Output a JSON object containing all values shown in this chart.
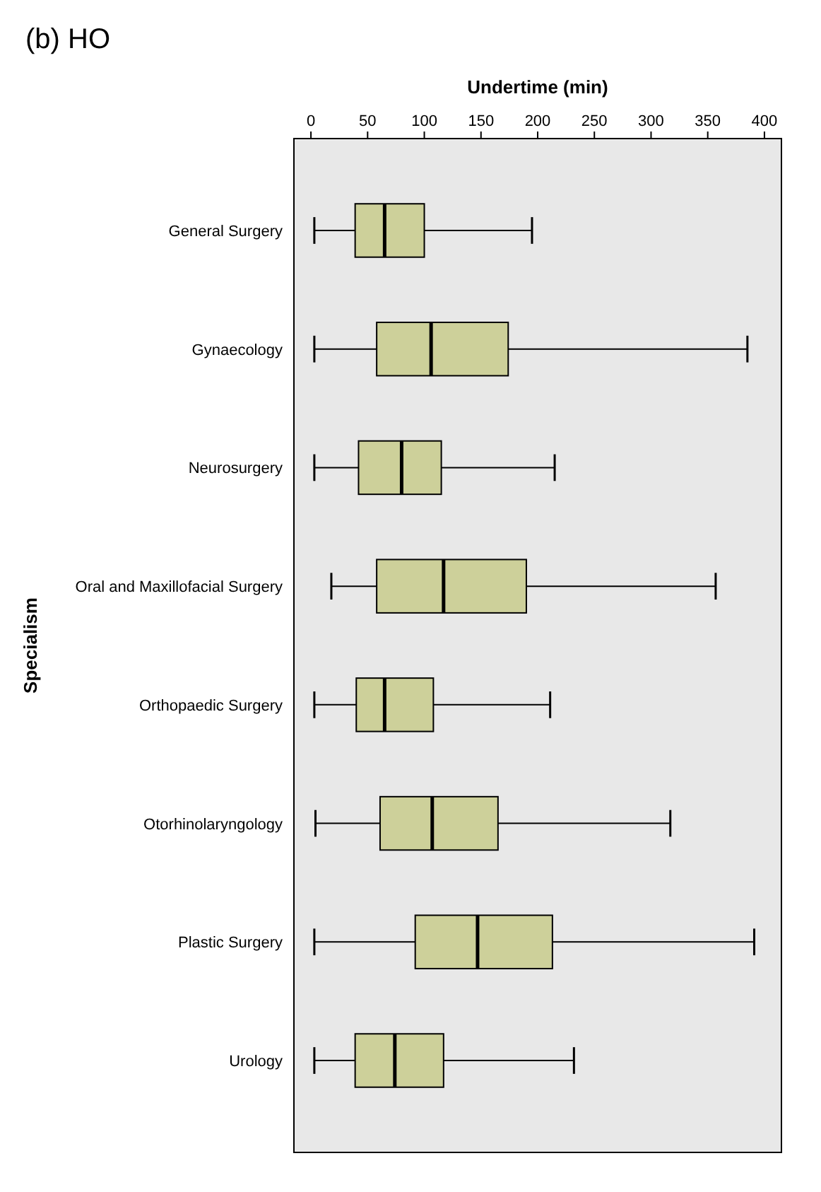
{
  "chart_data": {
    "type": "box",
    "title": "(b) HO",
    "xlabel": "Undertime (min)",
    "ylabel": "Specialism",
    "orientation": "horizontal",
    "xlim": [
      -15,
      415
    ],
    "xticks": [
      0,
      50,
      100,
      150,
      200,
      250,
      300,
      350,
      400
    ],
    "grid": false,
    "color": "#cdd09a",
    "categories": [
      "General Surgery",
      "Gynaecology",
      "Neurosurgery",
      "Oral and Maxillofacial Surgery",
      "Orthopaedic Surgery",
      "Otorhinolaryngology",
      "Plastic Surgery",
      "Urology"
    ],
    "boxes": [
      {
        "low": 3,
        "q1": 39,
        "median": 65,
        "q3": 100,
        "high": 195
      },
      {
        "low": 3,
        "q1": 58,
        "median": 106,
        "q3": 174,
        "high": 385
      },
      {
        "low": 3,
        "q1": 42,
        "median": 80,
        "q3": 115,
        "high": 215
      },
      {
        "low": 18,
        "q1": 58,
        "median": 117,
        "q3": 190,
        "high": 357
      },
      {
        "low": 3,
        "q1": 40,
        "median": 65,
        "q3": 108,
        "high": 211
      },
      {
        "low": 4,
        "q1": 61,
        "median": 107,
        "q3": 165,
        "high": 317
      },
      {
        "low": 3,
        "q1": 92,
        "median": 147,
        "q3": 213,
        "high": 391
      },
      {
        "low": 3,
        "q1": 39,
        "median": 74,
        "q3": 117,
        "high": 232
      }
    ]
  }
}
